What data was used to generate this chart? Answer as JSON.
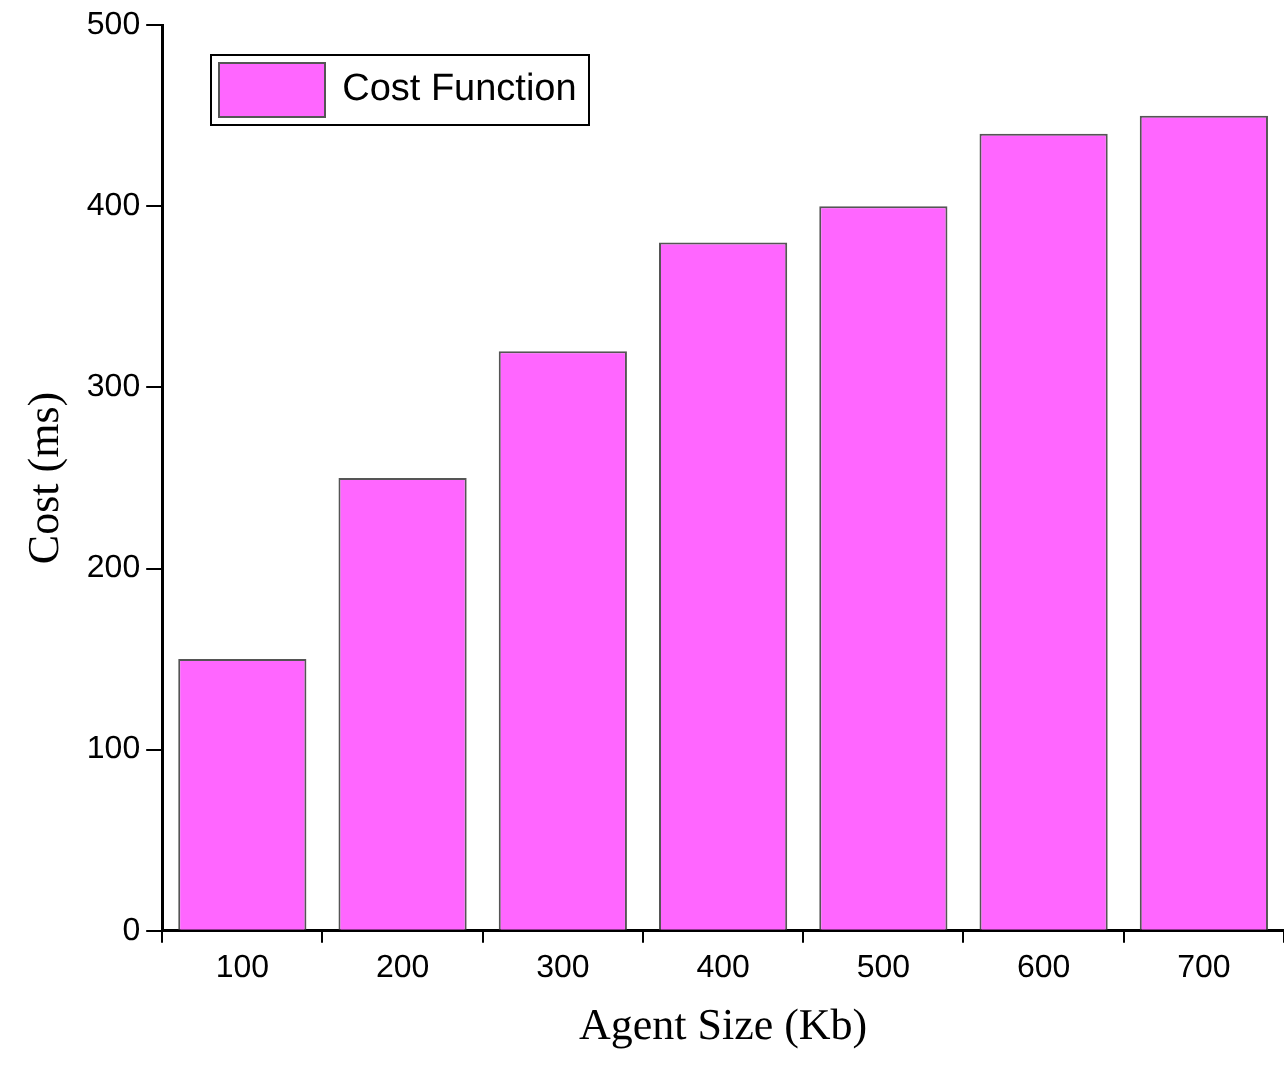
{
  "chart_data": {
    "type": "bar",
    "xlabel": "Agent Size (Kb)",
    "ylabel": "Cost (ms)",
    "categories": [
      "100",
      "200",
      "300",
      "400",
      "500",
      "600",
      "700"
    ],
    "series": [
      {
        "name": "Cost Function",
        "color": "#ff66ff",
        "values": [
          150,
          250,
          320,
          380,
          400,
          440,
          450
        ]
      }
    ],
    "ylim": [
      0,
      500
    ],
    "yticks": [
      0,
      100,
      200,
      300,
      400,
      500
    ],
    "grid": false,
    "legend": "top left"
  }
}
